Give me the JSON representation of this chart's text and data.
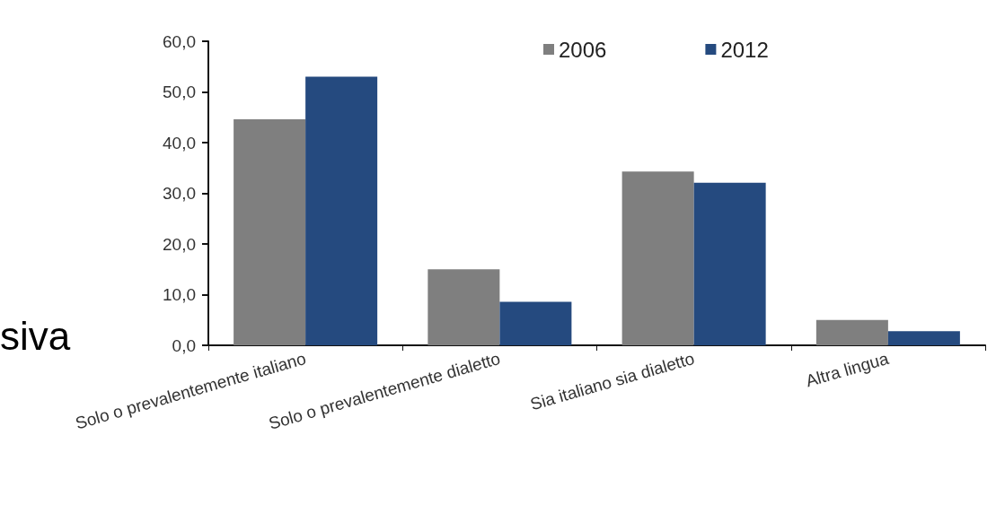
{
  "chart_data": {
    "type": "bar",
    "categories": [
      "Solo o prevalentemente italiano",
      "Solo o prevalentemente dialetto",
      "Sia italiano sia dialetto",
      "Altra lingua"
    ],
    "series": [
      {
        "name": "2006",
        "color": "#7f7f7f",
        "values": [
          44.6,
          15.0,
          34.3,
          5.0
        ]
      },
      {
        "name": "2012",
        "color": "#254a7f",
        "values": [
          53.0,
          8.6,
          32.1,
          2.8
        ]
      }
    ],
    "ylim": [
      0,
      60
    ],
    "yticks": [
      {
        "value": 0,
        "label": "0,0"
      },
      {
        "value": 10,
        "label": "10,0"
      },
      {
        "value": 20,
        "label": "20,0"
      },
      {
        "value": 30,
        "label": "30,0"
      },
      {
        "value": 40,
        "label": "40,0"
      },
      {
        "value": 50,
        "label": "50,0"
      },
      {
        "value": 60,
        "label": "60,0"
      }
    ],
    "grid": false,
    "legend": "top right",
    "annotations": [
      "siva"
    ]
  }
}
